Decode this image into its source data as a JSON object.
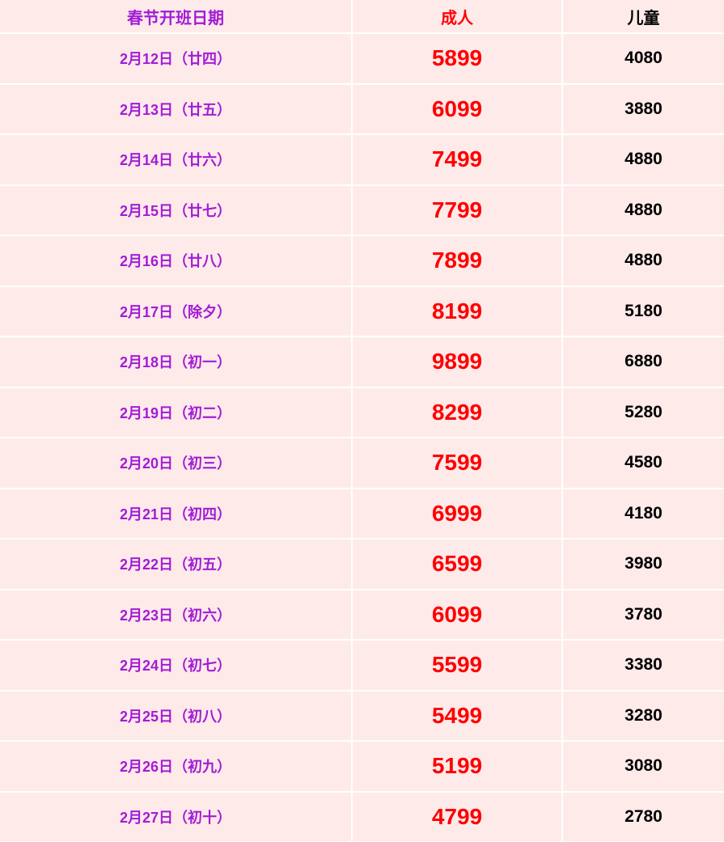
{
  "headers": {
    "date": "春节开班日期",
    "adult": "成人",
    "child": "儿童"
  },
  "colors": {
    "date": "#a21cd6",
    "adult": "#ff0000",
    "child": "#000000",
    "background": "#ffeaea"
  },
  "rows": [
    {
      "date": "2月12日（廿四）",
      "adult": "5899",
      "child": "4080"
    },
    {
      "date": "2月13日（廿五）",
      "adult": "6099",
      "child": "3880"
    },
    {
      "date": "2月14日（廿六）",
      "adult": "7499",
      "child": "4880"
    },
    {
      "date": "2月15日（廿七）",
      "adult": "7799",
      "child": "4880"
    },
    {
      "date": "2月16日（廿八）",
      "adult": "7899",
      "child": "4880"
    },
    {
      "date": "2月17日（除夕）",
      "adult": "8199",
      "child": "5180"
    },
    {
      "date": "2月18日（初一）",
      "adult": "9899",
      "child": "6880"
    },
    {
      "date": "2月19日（初二）",
      "adult": "8299",
      "child": "5280"
    },
    {
      "date": "2月20日（初三）",
      "adult": "7599",
      "child": "4580"
    },
    {
      "date": "2月21日（初四）",
      "adult": "6999",
      "child": "4180"
    },
    {
      "date": "2月22日（初五）",
      "adult": "6599",
      "child": "3980"
    },
    {
      "date": "2月23日（初六）",
      "adult": "6099",
      "child": "3780"
    },
    {
      "date": "2月24日（初七）",
      "adult": "5599",
      "child": "3380"
    },
    {
      "date": "2月25日（初八）",
      "adult": "5499",
      "child": "3280"
    },
    {
      "date": "2月26日（初九）",
      "adult": "5199",
      "child": "3080"
    },
    {
      "date": "2月27日（初十）",
      "adult": "4799",
      "child": "2780"
    }
  ]
}
